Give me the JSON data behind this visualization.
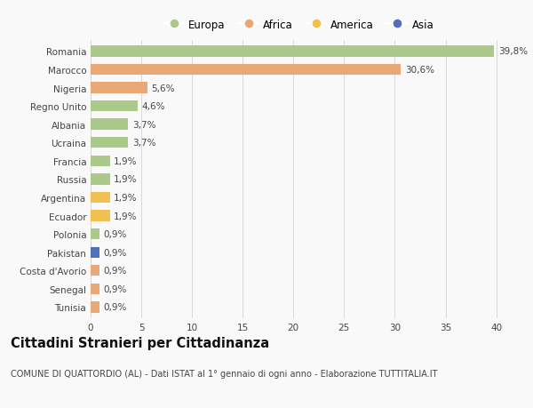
{
  "categories": [
    "Romania",
    "Marocco",
    "Nigeria",
    "Regno Unito",
    "Albania",
    "Ucraina",
    "Francia",
    "Russia",
    "Argentina",
    "Ecuador",
    "Polonia",
    "Pakistan",
    "Costa d'Avorio",
    "Senegal",
    "Tunisia"
  ],
  "values": [
    39.8,
    30.6,
    5.6,
    4.6,
    3.7,
    3.7,
    1.9,
    1.9,
    1.9,
    1.9,
    0.9,
    0.9,
    0.9,
    0.9,
    0.9
  ],
  "labels": [
    "39,8%",
    "30,6%",
    "5,6%",
    "4,6%",
    "3,7%",
    "3,7%",
    "1,9%",
    "1,9%",
    "1,9%",
    "1,9%",
    "0,9%",
    "0,9%",
    "0,9%",
    "0,9%",
    "0,9%"
  ],
  "continents": [
    "Europa",
    "Africa",
    "Africa",
    "Europa",
    "Europa",
    "Europa",
    "Europa",
    "Europa",
    "America",
    "America",
    "Europa",
    "Asia",
    "Africa",
    "Africa",
    "Africa"
  ],
  "continent_colors": {
    "Europa": "#aac98a",
    "Africa": "#e8a878",
    "America": "#f0c050",
    "Asia": "#5070b8"
  },
  "xlim": [
    0,
    41
  ],
  "xticks": [
    0,
    5,
    10,
    15,
    20,
    25,
    30,
    35,
    40
  ],
  "title": "Cittadini Stranieri per Cittadinanza",
  "subtitle": "COMUNE DI QUATTORDIO (AL) - Dati ISTAT al 1° gennaio di ogni anno - Elaborazione TUTTITALIA.IT",
  "background_color": "#f9f9f9",
  "grid_color": "#d8d8d8",
  "bar_height": 0.6,
  "label_fontsize": 7.5,
  "tick_fontsize": 7.5,
  "title_fontsize": 10.5,
  "subtitle_fontsize": 7.0,
  "legend_order": [
    "Europa",
    "Africa",
    "America",
    "Asia"
  ]
}
